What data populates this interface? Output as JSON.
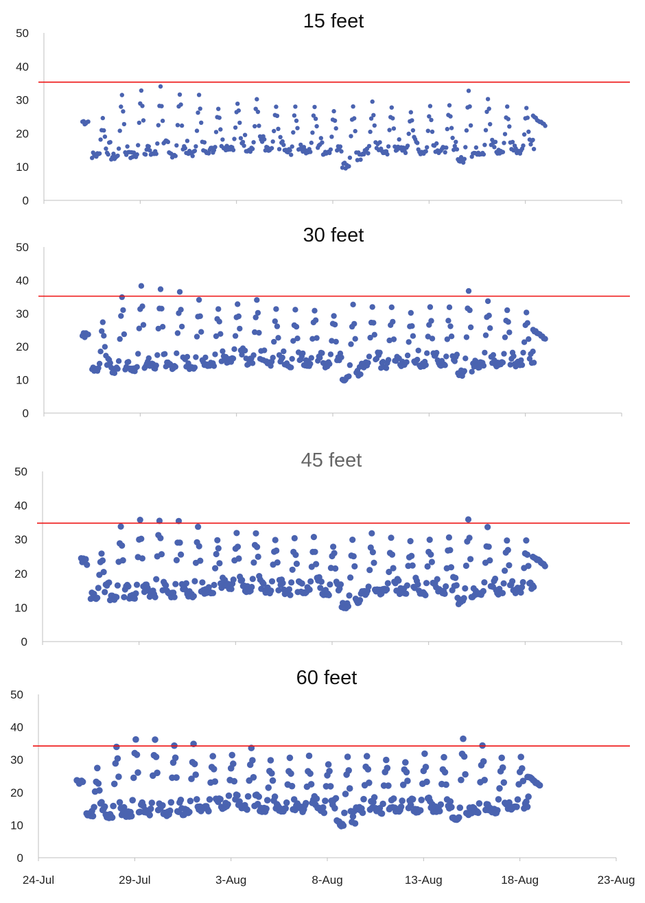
{
  "colors": {
    "points": "#4a63b0",
    "threshold": "#ee1111",
    "axis": "#bfbfbf",
    "title_dark": "#111111",
    "title_gray": "#666666"
  },
  "chart_data": [
    {
      "type": "scatter",
      "title": "15 feet",
      "ylim": [
        0,
        50
      ],
      "yticks": [
        0,
        10,
        20,
        30,
        40,
        50
      ],
      "threshold": 35.3,
      "series": [
        {
          "values_note": "",
          "points": []
        }
      ]
    },
    {
      "type": "scatter",
      "title": "30 feet",
      "ylim": [
        0,
        50
      ],
      "yticks": [
        0,
        10,
        20,
        30,
        40,
        50
      ],
      "threshold": 35.2,
      "series": [
        {
          "points": []
        }
      ]
    },
    {
      "type": "scatter",
      "title": "45 feet",
      "ylim": [
        0,
        50
      ],
      "yticks": [
        0,
        10,
        20,
        30,
        40,
        50
      ],
      "threshold": 34.8,
      "series": [
        {
          "points": []
        }
      ]
    },
    {
      "type": "scatter",
      "title": "60 feet",
      "ylim": [
        0,
        50
      ],
      "yticks": [
        0,
        10,
        20,
        30,
        40,
        50
      ],
      "threshold": 34.2,
      "xticks": [
        "24-Jul",
        "29-Jul",
        "3-Aug",
        "8-Aug",
        "13-Aug",
        "18-Aug",
        "23-Aug"
      ],
      "series": [
        {
          "points": []
        }
      ]
    }
  ],
  "daily_cycles": [
    {
      "day": "26-Jul",
      "lo": 12.5,
      "hi": 24.5
    },
    {
      "day": "27-Jul",
      "lo": 12.0,
      "hi": 32.0
    },
    {
      "day": "28-Jul",
      "lo": 12.5,
      "hi": 34.0
    },
    {
      "day": "29-Jul",
      "lo": 13.0,
      "hi": 34.0
    },
    {
      "day": "30-Jul",
      "lo": 12.8,
      "hi": 32.5
    },
    {
      "day": "31-Jul",
      "lo": 13.0,
      "hi": 31.5
    },
    {
      "day": "1-Aug",
      "lo": 14.0,
      "hi": 28.5
    },
    {
      "day": "2-Aug",
      "lo": 15.0,
      "hi": 29.5
    },
    {
      "day": "3-Aug",
      "lo": 14.5,
      "hi": 30.5
    },
    {
      "day": "4-Aug",
      "lo": 14.0,
      "hi": 28.0
    },
    {
      "day": "5-Aug",
      "lo": 13.5,
      "hi": 28.0
    },
    {
      "day": "6-Aug",
      "lo": 14.0,
      "hi": 28.0
    },
    {
      "day": "7-Aug",
      "lo": 13.5,
      "hi": 27.0
    },
    {
      "day": "8-Aug",
      "lo": 9.5,
      "hi": 29.0
    },
    {
      "day": "9-Aug",
      "lo": 13.5,
      "hi": 29.0
    },
    {
      "day": "10-Aug",
      "lo": 13.5,
      "hi": 28.0
    },
    {
      "day": "11-Aug",
      "lo": 14.0,
      "hi": 27.5
    },
    {
      "day": "12-Aug",
      "lo": 13.5,
      "hi": 28.5
    },
    {
      "day": "13-Aug",
      "lo": 14.0,
      "hi": 28.0
    },
    {
      "day": "14-Aug",
      "lo": 11.0,
      "hi": 34.0
    },
    {
      "day": "15-Aug",
      "lo": 13.5,
      "hi": 31.0
    },
    {
      "day": "16-Aug",
      "lo": 13.5,
      "hi": 28.5
    },
    {
      "day": "17-Aug",
      "lo": 14.0,
      "hi": 28.0
    }
  ]
}
